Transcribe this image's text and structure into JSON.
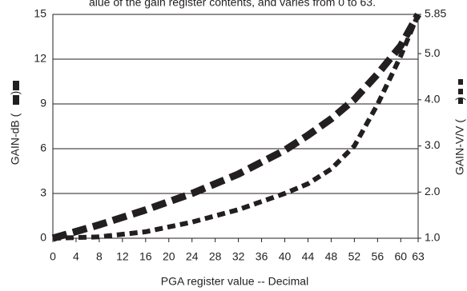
{
  "chart_data": {
    "type": "line",
    "title": "alue of the gain register contents, and varies from 0 to 63.",
    "xlabel": "PGA register value -- Decimal",
    "ylabel": "GAIN-dB (      )",
    "y2label": "GAIN-V/V (      )",
    "x": [
      0,
      8,
      16,
      24,
      32,
      40,
      44,
      48,
      52,
      56,
      60,
      63
    ],
    "series": [
      {
        "color": "#231f20",
        "values": [
          0,
          0.9,
          1.9,
          3.0,
          4.3,
          5.9,
          6.9,
          8.0,
          9.3,
          11.0,
          12.9,
          15
        ]
      },
      {
        "color": "#231f20",
        "axis": "y2",
        "values": [
          1.0,
          1.03,
          1.14,
          1.35,
          1.62,
          1.97,
          2.18,
          2.5,
          3.0,
          3.9,
          4.95,
          5.85
        ]
      }
    ],
    "xlim": [
      0,
      63
    ],
    "xticks": [
      0,
      4,
      8,
      12,
      16,
      20,
      24,
      28,
      32,
      36,
      40,
      44,
      48,
      52,
      56,
      60,
      63
    ],
    "ylim": [
      0,
      15
    ],
    "yticks": [
      0,
      3,
      6,
      9,
      12,
      15
    ],
    "y2lim": [
      1.0,
      5.85
    ],
    "y2ticks": [
      {
        "value": 1.0,
        "label": "1.0"
      },
      {
        "value": 2.0,
        "label": "2.0"
      },
      {
        "value": 3.0,
        "label": "3.0"
      },
      {
        "value": 4.0,
        "label": "4.0"
      },
      {
        "value": 5.0,
        "label": "5.0"
      },
      5.85
    ],
    "grid": true
  }
}
